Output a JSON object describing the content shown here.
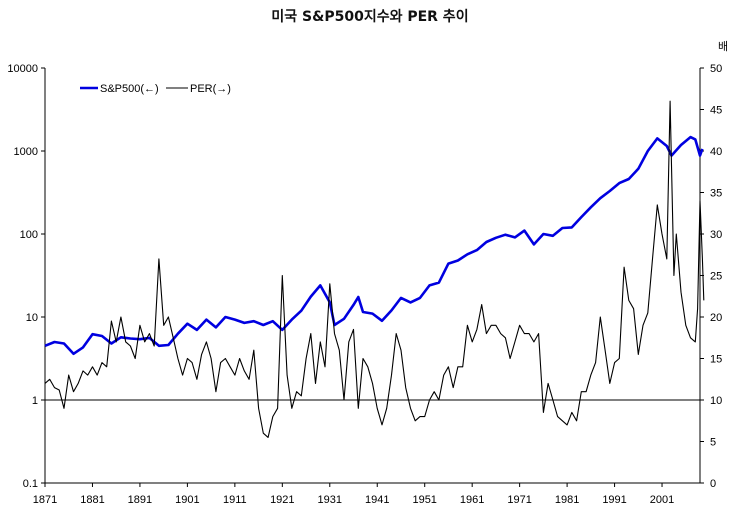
{
  "chart_data": {
    "type": "line",
    "title": "미국 S&P500지수와 PER 추이",
    "x_ticks": [
      "1871",
      "1881",
      "1891",
      "1901",
      "1911",
      "1921",
      "1931",
      "1941",
      "1951",
      "1961",
      "1971",
      "1981",
      "1991",
      "2001"
    ],
    "xlim": [
      1871,
      2009
    ],
    "left_axis": {
      "scale": "log",
      "ylim": [
        0.1,
        10000
      ],
      "ticks": [
        "0.1",
        "1",
        "10",
        "100",
        "1000",
        "10000"
      ]
    },
    "right_axis": {
      "unit": "배",
      "ylim": [
        0,
        50
      ],
      "ticks": [
        "0",
        "5",
        "10",
        "15",
        "20",
        "25",
        "30",
        "35",
        "40",
        "45",
        "50"
      ]
    },
    "reference_line": {
      "axis": "left",
      "value": 1
    },
    "legend": {
      "placement": "top-left"
    },
    "series": [
      {
        "name": "S&P500(←)",
        "axis": "left",
        "color": "#0000e0",
        "points": [
          [
            1871,
            4.5
          ],
          [
            1873,
            5.0
          ],
          [
            1875,
            4.8
          ],
          [
            1877,
            3.6
          ],
          [
            1879,
            4.3
          ],
          [
            1881,
            6.2
          ],
          [
            1883,
            5.9
          ],
          [
            1885,
            4.8
          ],
          [
            1887,
            5.7
          ],
          [
            1889,
            5.5
          ],
          [
            1891,
            5.4
          ],
          [
            1893,
            5.6
          ],
          [
            1895,
            4.5
          ],
          [
            1897,
            4.6
          ],
          [
            1899,
            6.3
          ],
          [
            1901,
            8.3
          ],
          [
            1903,
            7.0
          ],
          [
            1905,
            9.3
          ],
          [
            1907,
            7.5
          ],
          [
            1909,
            10.0
          ],
          [
            1911,
            9.3
          ],
          [
            1913,
            8.5
          ],
          [
            1915,
            8.9
          ],
          [
            1917,
            8.0
          ],
          [
            1919,
            8.9
          ],
          [
            1921,
            7.0
          ],
          [
            1923,
            9.3
          ],
          [
            1925,
            11.9
          ],
          [
            1927,
            17.6
          ],
          [
            1929,
            24.0
          ],
          [
            1931,
            15.0
          ],
          [
            1932,
            8.0
          ],
          [
            1934,
            9.5
          ],
          [
            1936,
            14.0
          ],
          [
            1937,
            17.4
          ],
          [
            1938,
            11.5
          ],
          [
            1940,
            11.0
          ],
          [
            1942,
            9.0
          ],
          [
            1944,
            12.0
          ],
          [
            1946,
            17.0
          ],
          [
            1948,
            15.0
          ],
          [
            1950,
            17.0
          ],
          [
            1952,
            24.0
          ],
          [
            1954,
            26.0
          ],
          [
            1956,
            44.0
          ],
          [
            1958,
            48.0
          ],
          [
            1960,
            57.0
          ],
          [
            1962,
            64.0
          ],
          [
            1964,
            80.0
          ],
          [
            1966,
            90.0
          ],
          [
            1968,
            98.0
          ],
          [
            1970,
            91.0
          ],
          [
            1972,
            110.0
          ],
          [
            1974,
            75.0
          ],
          [
            1976,
            100.0
          ],
          [
            1978,
            95.0
          ],
          [
            1980,
            118.0
          ],
          [
            1982,
            120.0
          ],
          [
            1984,
            160.0
          ],
          [
            1986,
            210.0
          ],
          [
            1988,
            270.0
          ],
          [
            1990,
            330.0
          ],
          [
            1992,
            410.0
          ],
          [
            1994,
            460.0
          ],
          [
            1996,
            610.0
          ],
          [
            1998,
            1000.0
          ],
          [
            2000,
            1420.0
          ],
          [
            2002,
            1150.0
          ],
          [
            2003,
            880.0
          ],
          [
            2005,
            1180.0
          ],
          [
            2007,
            1470.0
          ],
          [
            2008,
            1380.0
          ],
          [
            2009,
            880.0
          ],
          [
            2009.5,
            1060.0
          ]
        ]
      },
      {
        "name": "PER(→)",
        "axis": "right",
        "color": "#000000",
        "points": [
          [
            1871,
            12
          ],
          [
            1872,
            12.5
          ],
          [
            1873,
            11.5
          ],
          [
            1874,
            11.2
          ],
          [
            1875,
            9.0
          ],
          [
            1876,
            13.0
          ],
          [
            1877,
            11.0
          ],
          [
            1878,
            12.0
          ],
          [
            1879,
            13.5
          ],
          [
            1880,
            13.0
          ],
          [
            1881,
            14.0
          ],
          [
            1882,
            13.0
          ],
          [
            1883,
            14.5
          ],
          [
            1884,
            14.0
          ],
          [
            1885,
            19.5
          ],
          [
            1886,
            17.0
          ],
          [
            1887,
            20.0
          ],
          [
            1888,
            17.0
          ],
          [
            1889,
            16.5
          ],
          [
            1890,
            15.0
          ],
          [
            1891,
            19.0
          ],
          [
            1892,
            17.0
          ],
          [
            1893,
            18.0
          ],
          [
            1894,
            16.5
          ],
          [
            1895,
            27.0
          ],
          [
            1896,
            19.0
          ],
          [
            1897,
            20.0
          ],
          [
            1898,
            17.5
          ],
          [
            1899,
            15.0
          ],
          [
            1900,
            13.0
          ],
          [
            1901,
            15.0
          ],
          [
            1902,
            14.5
          ],
          [
            1903,
            12.5
          ],
          [
            1904,
            15.5
          ],
          [
            1905,
            17.0
          ],
          [
            1906,
            15.0
          ],
          [
            1907,
            11.0
          ],
          [
            1908,
            14.5
          ],
          [
            1909,
            15.0
          ],
          [
            1910,
            14.0
          ],
          [
            1911,
            13.0
          ],
          [
            1912,
            15.0
          ],
          [
            1913,
            13.5
          ],
          [
            1914,
            12.5
          ],
          [
            1915,
            16.0
          ],
          [
            1916,
            9.0
          ],
          [
            1917,
            6.0
          ],
          [
            1918,
            5.5
          ],
          [
            1919,
            8.0
          ],
          [
            1920,
            9.0
          ],
          [
            1921,
            25.0
          ],
          [
            1922,
            13.0
          ],
          [
            1923,
            9.0
          ],
          [
            1924,
            11.0
          ],
          [
            1925,
            10.5
          ],
          [
            1926,
            15.0
          ],
          [
            1927,
            18.0
          ],
          [
            1928,
            12.0
          ],
          [
            1929,
            17.0
          ],
          [
            1930,
            14.0
          ],
          [
            1931,
            24.0
          ],
          [
            1932,
            18.0
          ],
          [
            1933,
            16.0
          ],
          [
            1934,
            10.0
          ],
          [
            1935,
            17.0
          ],
          [
            1936,
            18.5
          ],
          [
            1937,
            9.0
          ],
          [
            1938,
            15.0
          ],
          [
            1939,
            14.0
          ],
          [
            1940,
            12.0
          ],
          [
            1941,
            9.0
          ],
          [
            1942,
            7.0
          ],
          [
            1943,
            9.0
          ],
          [
            1944,
            13.0
          ],
          [
            1945,
            18.0
          ],
          [
            1946,
            16.0
          ],
          [
            1947,
            11.5
          ],
          [
            1948,
            9.0
          ],
          [
            1949,
            7.5
          ],
          [
            1950,
            8.0
          ],
          [
            1951,
            8.0
          ],
          [
            1952,
            10.0
          ],
          [
            1953,
            11.0
          ],
          [
            1954,
            10.0
          ],
          [
            1955,
            13.0
          ],
          [
            1956,
            14.0
          ],
          [
            1957,
            11.5
          ],
          [
            1958,
            14.0
          ],
          [
            1959,
            14.0
          ],
          [
            1960,
            19.0
          ],
          [
            1961,
            17.0
          ],
          [
            1962,
            18.5
          ],
          [
            1963,
            21.5
          ],
          [
            1964,
            18.0
          ],
          [
            1965,
            19.0
          ],
          [
            1966,
            19.0
          ],
          [
            1967,
            18.0
          ],
          [
            1968,
            17.5
          ],
          [
            1969,
            15.0
          ],
          [
            1970,
            17.0
          ],
          [
            1971,
            19.0
          ],
          [
            1972,
            18.0
          ],
          [
            1973,
            18.0
          ],
          [
            1974,
            17.0
          ],
          [
            1975,
            18.0
          ],
          [
            1976,
            8.5
          ],
          [
            1977,
            12.0
          ],
          [
            1978,
            10.0
          ],
          [
            1979,
            8.0
          ],
          [
            1980,
            7.5
          ],
          [
            1981,
            7.0
          ],
          [
            1982,
            8.5
          ],
          [
            1983,
            7.5
          ],
          [
            1984,
            11.0
          ],
          [
            1985,
            11.0
          ],
          [
            1986,
            13.0
          ],
          [
            1987,
            14.5
          ],
          [
            1988,
            20.0
          ],
          [
            1989,
            16.0
          ],
          [
            1990,
            12.0
          ],
          [
            1991,
            14.5
          ],
          [
            1992,
            15.0
          ],
          [
            1993,
            26.0
          ],
          [
            1994,
            22.0
          ],
          [
            1995,
            21.0
          ],
          [
            1996,
            15.5
          ],
          [
            1997,
            19.0
          ],
          [
            1998,
            20.5
          ],
          [
            1999,
            27.0
          ],
          [
            2000,
            33.5
          ],
          [
            2001,
            30.0
          ],
          [
            2002,
            27.0
          ],
          [
            2002.7,
            46.0
          ],
          [
            2003.5,
            25.0
          ],
          [
            2004,
            30.0
          ],
          [
            2005,
            23.0
          ],
          [
            2006,
            19.0
          ],
          [
            2007,
            17.5
          ],
          [
            2008,
            17.0
          ],
          [
            2008.5,
            21.0
          ],
          [
            2009,
            34.0
          ],
          [
            2009.5,
            27.0
          ],
          [
            2009.8,
            22.0
          ]
        ]
      }
    ]
  }
}
